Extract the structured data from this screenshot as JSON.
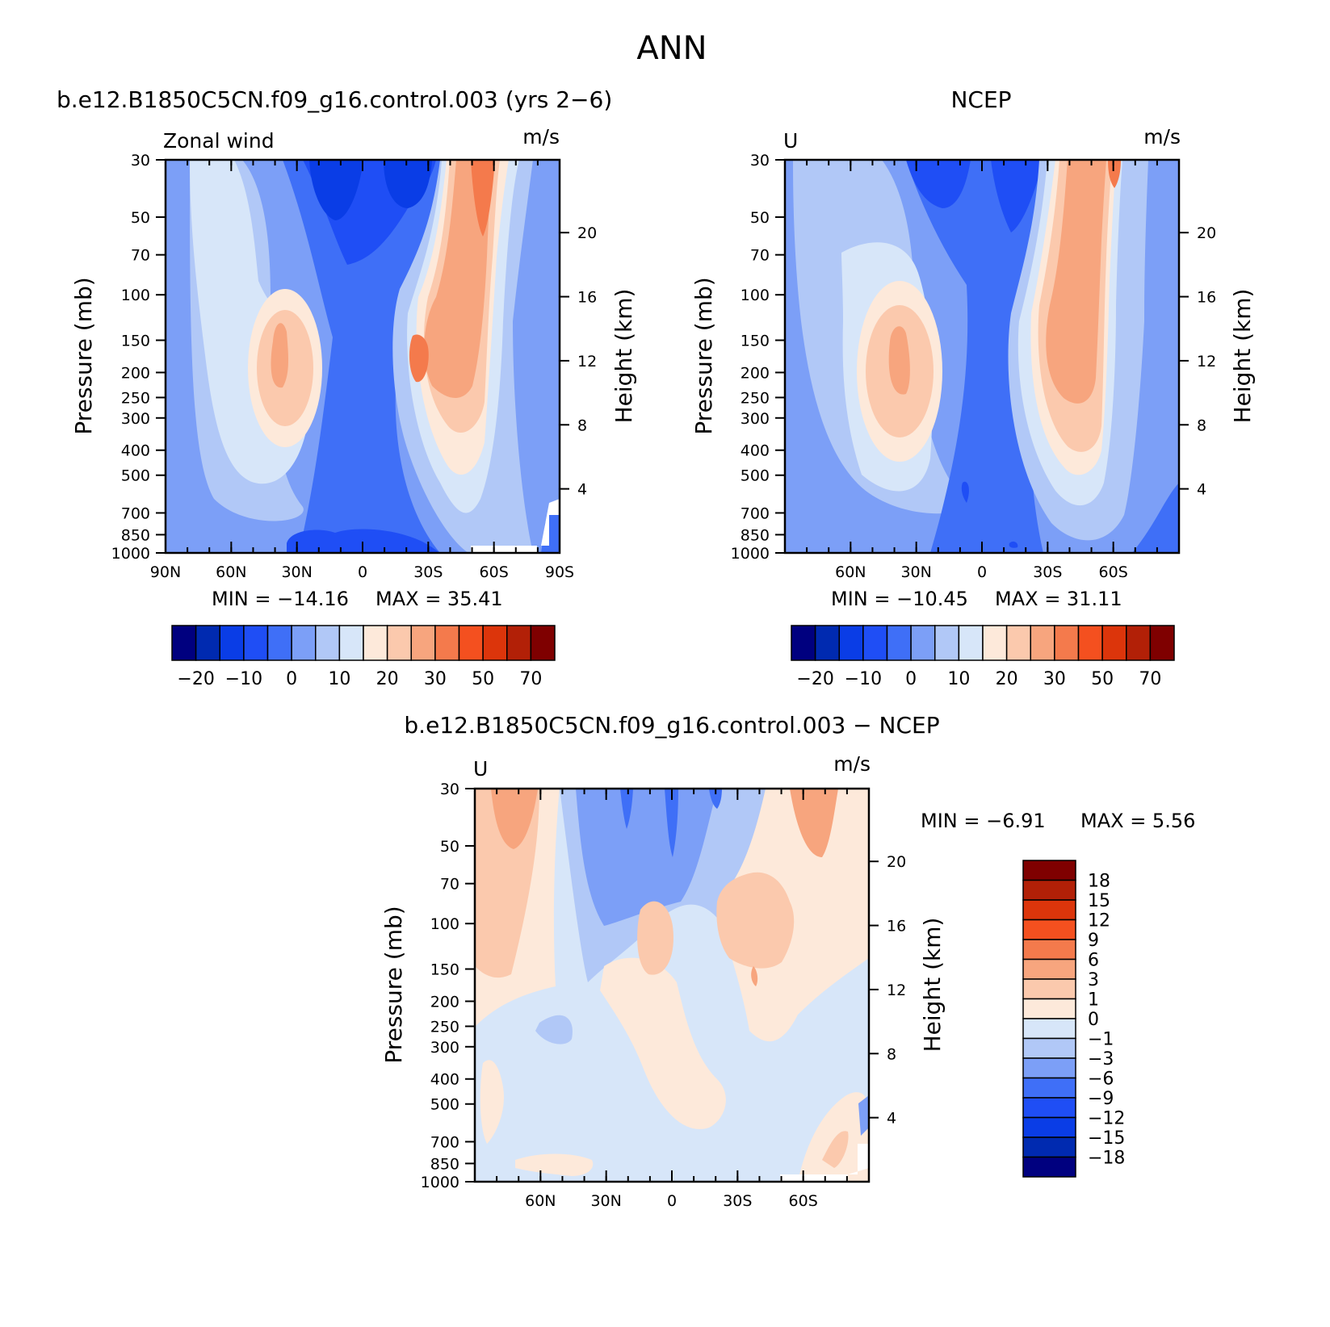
{
  "page_title": "ANN",
  "chart_data": [
    {
      "type": "heatmap",
      "subtype": "filled-contour",
      "title": "b.e12.B1850C5CN.f09_g16.control.003 (yrs 2−6)",
      "left_label": "Zonal wind",
      "right_label": "m/s",
      "xlabel": "",
      "ylabel": "Pressure (mb)",
      "y2label": "Height (km)",
      "x_ticks": [
        "90N",
        "60N",
        "30N",
        "0",
        "30S",
        "60S",
        "90S"
      ],
      "y_ticks": [
        "30",
        "50",
        "70",
        "100",
        "150",
        "200",
        "250",
        "300",
        "400",
        "500",
        "700",
        "850",
        "1000"
      ],
      "y2_ticks": [
        "20",
        "16",
        "12",
        "8",
        "4"
      ],
      "xlim": [
        90,
        -90
      ],
      "ylim": [
        1000,
        30
      ],
      "min_text": "MIN = −14.16",
      "max_text": "MAX =  35.41",
      "min": -14.16,
      "max": 35.41,
      "features": [
        {
          "name": "nh-jet",
          "lat": 36,
          "pressure": 200,
          "value": 30
        },
        {
          "name": "sh-jet",
          "lat": -43,
          "pressure": 200,
          "value": 35
        },
        {
          "name": "sh-strat-jet",
          "lat": -60,
          "pressure": 30,
          "value": 30
        },
        {
          "name": "tropical-easterlies",
          "lat": 0,
          "pressure": 40,
          "value": -14
        }
      ],
      "colorbar": {
        "orientation": "horizontal",
        "labels": [
          "−20",
          "−10",
          "0",
          "10",
          "20",
          "30",
          "50",
          "70"
        ],
        "colors": [
          "#00007f",
          "#002ab0",
          "#0a3de6",
          "#1f4ef5",
          "#3f6ff7",
          "#7c9ff7",
          "#b1c8f7",
          "#d7e6f9",
          "#fde9da",
          "#fbc9ad",
          "#f7a57e",
          "#f47a4c",
          "#f4501f",
          "#dc350b",
          "#b22007",
          "#7f0000"
        ]
      }
    },
    {
      "type": "heatmap",
      "subtype": "filled-contour",
      "title": "NCEP",
      "left_label": "U",
      "right_label": "m/s",
      "ylabel": "Pressure (mb)",
      "y2label": "Height (km)",
      "x_ticks": [
        "60N",
        "30N",
        "0",
        "30S",
        "60S"
      ],
      "y_ticks": [
        "30",
        "50",
        "70",
        "100",
        "150",
        "200",
        "250",
        "300",
        "400",
        "500",
        "700",
        "850",
        "1000"
      ],
      "y2_ticks": [
        "20",
        "16",
        "12",
        "8",
        "4"
      ],
      "xlim": [
        90,
        -90
      ],
      "ylim": [
        1000,
        30
      ],
      "min_text": "MIN = −10.45",
      "max_text": "MAX =  31.11",
      "min": -10.45,
      "max": 31.11,
      "features": [
        {
          "name": "nh-jet",
          "lat": 33,
          "pressure": 200,
          "value": 30
        },
        {
          "name": "sh-jet",
          "lat": -40,
          "pressure": 200,
          "value": 29
        },
        {
          "name": "sh-strat-jet",
          "lat": -60,
          "pressure": 30,
          "value": 31
        },
        {
          "name": "tropical-easterlies",
          "lat": 0,
          "pressure": 40,
          "value": -10
        }
      ],
      "colorbar": {
        "orientation": "horizontal",
        "labels": [
          "−20",
          "−10",
          "0",
          "10",
          "20",
          "30",
          "50",
          "70"
        ],
        "colors": [
          "#00007f",
          "#002ab0",
          "#0a3de6",
          "#1f4ef5",
          "#3f6ff7",
          "#7c9ff7",
          "#b1c8f7",
          "#d7e6f9",
          "#fde9da",
          "#fbc9ad",
          "#f7a57e",
          "#f47a4c",
          "#f4501f",
          "#dc350b",
          "#b22007",
          "#7f0000"
        ]
      }
    },
    {
      "type": "heatmap",
      "subtype": "filled-contour",
      "title": "b.e12.B1850C5CN.f09_g16.control.003 − NCEP",
      "left_label": "U",
      "right_label": "m/s",
      "ylabel": "Pressure (mb)",
      "y2label": "Height (km)",
      "x_ticks": [
        "60N",
        "30N",
        "0",
        "30S",
        "60S"
      ],
      "y_ticks": [
        "30",
        "50",
        "70",
        "100",
        "150",
        "200",
        "250",
        "300",
        "400",
        "500",
        "700",
        "850",
        "1000"
      ],
      "y2_ticks": [
        "20",
        "16",
        "12",
        "8",
        "4"
      ],
      "xlim": [
        90,
        -90
      ],
      "ylim": [
        1000,
        30
      ],
      "min_text": "MIN =   −6.91",
      "max_text": "MAX =    5.56",
      "min": -6.91,
      "max": 5.56,
      "colorbar": {
        "orientation": "vertical",
        "labels": [
          "18",
          "15",
          "12",
          "9",
          "6",
          "3",
          "1",
          "0",
          "−1",
          "−3",
          "−6",
          "−9",
          "−12",
          "−15",
          "−18"
        ],
        "colors": [
          "#7f0000",
          "#b22007",
          "#dc350b",
          "#f4501f",
          "#f47a4c",
          "#f7a57e",
          "#fbc9ad",
          "#fde9da",
          "#d7e6f9",
          "#b1c8f7",
          "#7c9ff7",
          "#3f6ff7",
          "#1f4ef5",
          "#0a3de6",
          "#002ab0",
          "#00007f"
        ]
      }
    }
  ]
}
